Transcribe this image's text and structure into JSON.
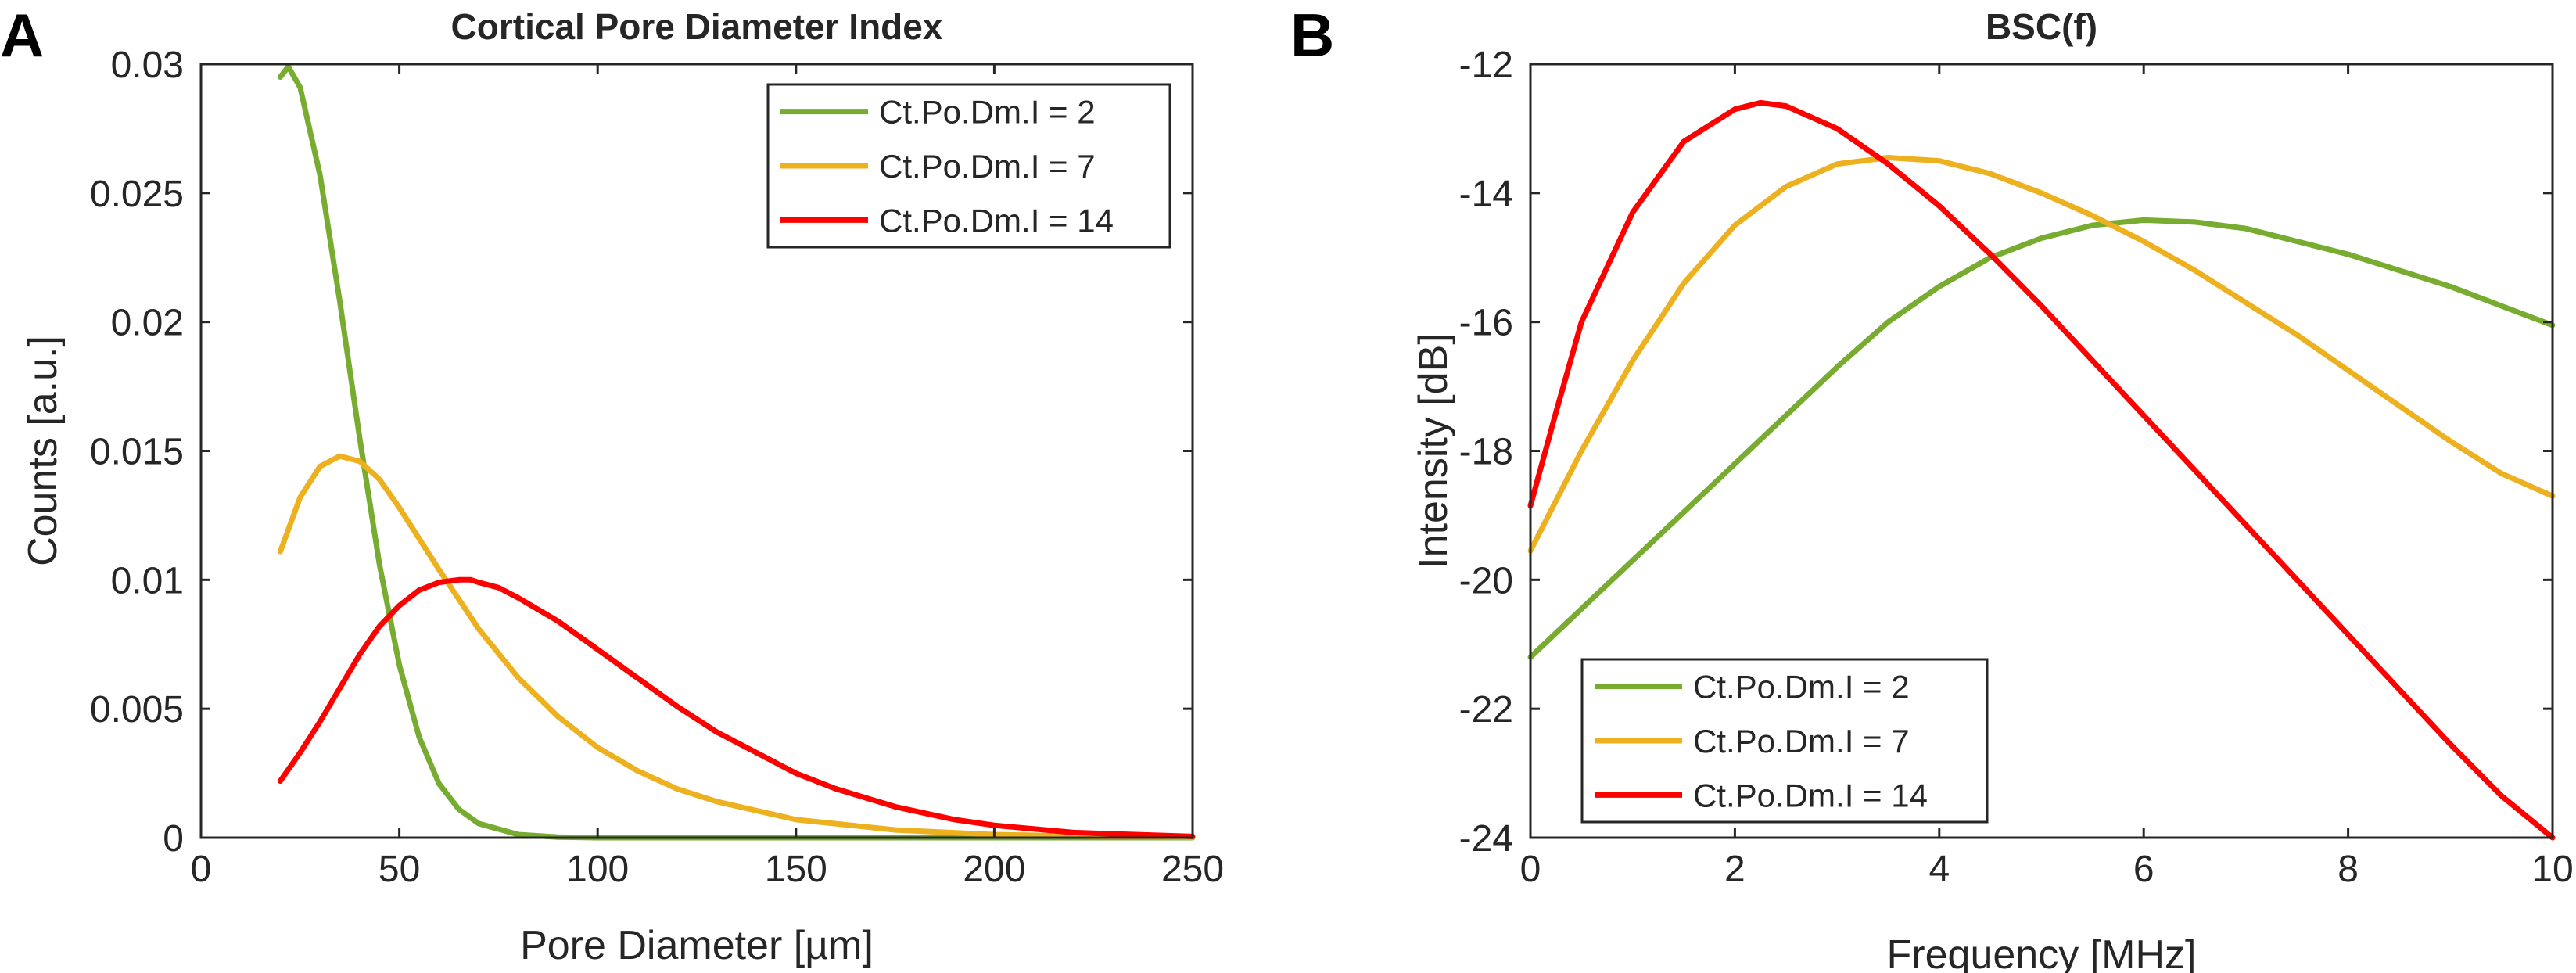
{
  "panels": {
    "a": {
      "letter": "A"
    },
    "b": {
      "letter": "B"
    }
  },
  "colors": {
    "green": "#77AC30",
    "yellow": "#EDB120",
    "red": "#FF0000"
  },
  "chart_data": [
    {
      "id": "a",
      "type": "line",
      "title": "Cortical Pore Diameter Index",
      "xlabel": "Pore Diameter [µm]",
      "ylabel": "Counts [a.u.]",
      "xlim": [
        0,
        250
      ],
      "ylim": [
        0,
        0.03
      ],
      "xticks": [
        0,
        50,
        100,
        150,
        200,
        250
      ],
      "xtick_labels": [
        "0",
        "50",
        "100",
        "150",
        "200",
        "250"
      ],
      "yticks": [
        0,
        0.005,
        0.01,
        0.015,
        0.02,
        0.025,
        0.03
      ],
      "ytick_labels": [
        "0",
        "0.005",
        "0.01",
        "0.015",
        "0.02",
        "0.025",
        "0.03"
      ],
      "legend_position": "top-right",
      "series": [
        {
          "name": "Ct.Po.Dm.I = 2",
          "color": "#77AC30",
          "x": [
            20,
            22,
            25,
            30,
            35,
            40,
            45,
            50,
            55,
            60,
            65,
            70,
            80,
            90,
            100,
            110,
            120,
            150,
            200,
            250
          ],
          "y": [
            0.0295,
            0.0299,
            0.0291,
            0.0257,
            0.0208,
            0.0155,
            0.0106,
            0.0067,
            0.0039,
            0.0021,
            0.0011,
            0.00055,
            0.00012,
            2e-05,
            0.0,
            0.0,
            0.0,
            0.0,
            0.0,
            0.0
          ]
        },
        {
          "name": "Ct.Po.Dm.I = 7",
          "color": "#EDB120",
          "x": [
            20,
            25,
            30,
            35,
            40,
            45,
            50,
            60,
            70,
            80,
            90,
            100,
            110,
            120,
            130,
            150,
            175,
            200,
            225,
            250
          ],
          "y": [
            0.0111,
            0.0132,
            0.0144,
            0.0148,
            0.0146,
            0.0139,
            0.0128,
            0.0104,
            0.0081,
            0.0062,
            0.0047,
            0.0035,
            0.0026,
            0.0019,
            0.0014,
            0.0007,
            0.0003,
            0.00012,
            5e-05,
            2e-05
          ]
        },
        {
          "name": "Ct.Po.Dm.I = 14",
          "color": "#FF0000",
          "x": [
            20,
            25,
            30,
            35,
            40,
            45,
            50,
            55,
            60,
            65,
            68,
            70,
            75,
            80,
            90,
            100,
            110,
            120,
            130,
            140,
            150,
            160,
            175,
            190,
            200,
            220,
            250
          ],
          "y": [
            0.0022,
            0.0033,
            0.0045,
            0.0058,
            0.0071,
            0.0082,
            0.009,
            0.0096,
            0.0099,
            0.01,
            0.01,
            0.0099,
            0.0097,
            0.0093,
            0.0084,
            0.0073,
            0.0062,
            0.0051,
            0.0041,
            0.0033,
            0.0025,
            0.0019,
            0.0012,
            0.0007,
            0.00048,
            0.0002,
            5e-05
          ]
        }
      ]
    },
    {
      "id": "b",
      "type": "line",
      "title": "BSC(f)",
      "xlabel": "Frequency [MHz]",
      "ylabel": "Intensity [dB]",
      "xlim": [
        0,
        10
      ],
      "ylim": [
        -24,
        -12
      ],
      "xticks": [
        0,
        2,
        4,
        6,
        8,
        10
      ],
      "xtick_labels": [
        "0",
        "2",
        "4",
        "6",
        "8",
        "10"
      ],
      "yticks": [
        -24,
        -22,
        -20,
        -18,
        -16,
        -14,
        -12
      ],
      "ytick_labels": [
        "-24",
        "-22",
        "-20",
        "-18",
        "-16",
        "-14",
        "-12"
      ],
      "legend_position": "bottom-left",
      "series": [
        {
          "name": "Ct.Po.Dm.I = 2",
          "color": "#77AC30",
          "x": [
            0,
            0.5,
            1,
            1.5,
            2,
            2.5,
            3,
            3.5,
            4,
            4.5,
            5,
            5.5,
            6,
            6.5,
            7,
            7.5,
            8,
            8.5,
            9,
            9.5,
            10
          ],
          "y": [
            -21.2,
            -20.45,
            -19.7,
            -18.95,
            -18.2,
            -17.45,
            -16.7,
            -16.0,
            -15.45,
            -15.0,
            -14.7,
            -14.5,
            -14.42,
            -14.45,
            -14.55,
            -14.75,
            -14.95,
            -15.2,
            -15.45,
            -15.75,
            -16.05
          ]
        },
        {
          "name": "Ct.Po.Dm.I = 7",
          "color": "#EDB120",
          "x": [
            0,
            0.5,
            1,
            1.5,
            2,
            2.5,
            3,
            3.5,
            4,
            4.5,
            5,
            5.5,
            6,
            6.5,
            7,
            7.5,
            8,
            8.5,
            9,
            9.5,
            10
          ],
          "y": [
            -19.55,
            -18.0,
            -16.6,
            -15.4,
            -14.5,
            -13.9,
            -13.55,
            -13.45,
            -13.5,
            -13.7,
            -14.0,
            -14.35,
            -14.75,
            -15.2,
            -15.7,
            -16.2,
            -16.75,
            -17.3,
            -17.85,
            -18.35,
            -18.7
          ]
        },
        {
          "name": "Ct.Po.Dm.I = 14",
          "color": "#FF0000",
          "x": [
            0,
            0.25,
            0.5,
            1,
            1.5,
            2,
            2.25,
            2.5,
            3,
            3.5,
            4,
            4.5,
            5,
            5.5,
            6,
            6.5,
            7,
            7.5,
            8,
            8.5,
            9,
            9.5,
            10
          ],
          "y": [
            -18.85,
            -17.4,
            -16.0,
            -14.3,
            -13.2,
            -12.7,
            -12.6,
            -12.65,
            -13.0,
            -13.55,
            -14.2,
            -14.95,
            -15.75,
            -16.6,
            -17.45,
            -18.3,
            -19.15,
            -20.0,
            -20.85,
            -21.7,
            -22.55,
            -23.35,
            -24.0
          ]
        }
      ]
    }
  ]
}
